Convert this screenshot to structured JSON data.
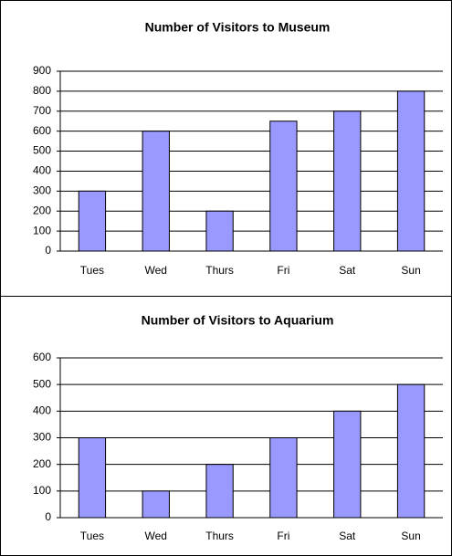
{
  "chart_data": [
    {
      "type": "bar",
      "title": "Number of Visitors to Museum",
      "categories": [
        "Tues",
        "Wed",
        "Thurs",
        "Fri",
        "Sat",
        "Sun"
      ],
      "values": [
        300,
        600,
        200,
        650,
        700,
        800
      ],
      "color": "#9999ff",
      "ylim": [
        0,
        900
      ],
      "yticks": [
        0,
        100,
        200,
        300,
        400,
        500,
        600,
        700,
        800,
        900
      ],
      "grid": true
    },
    {
      "type": "bar",
      "title": "Number of Visitors to Aquarium",
      "categories": [
        "Tues",
        "Wed",
        "Thurs",
        "Fri",
        "Sat",
        "Sun"
      ],
      "values": [
        300,
        100,
        200,
        300,
        400,
        500
      ],
      "color": "#9999ff",
      "ylim": [
        0,
        600
      ],
      "yticks": [
        0,
        100,
        200,
        300,
        400,
        500,
        600
      ],
      "grid": true
    }
  ]
}
